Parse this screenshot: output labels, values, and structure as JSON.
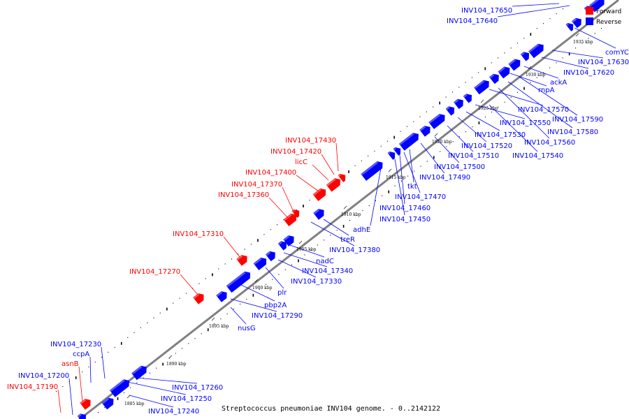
{
  "caption": "Streptococcus pneumoniae INV104 genome. - 0..2142122",
  "legend": [
    {
      "name": "Forward",
      "color": "#ff0000"
    },
    {
      "name": "Reverse",
      "color": "#0000ff"
    }
  ],
  "colors": {
    "forward": "#ff0000",
    "reverse": "#0000ff",
    "backbone": "#888888"
  },
  "ticks": [
    "1885 kbp",
    "1890 kbp",
    "1895 kbp",
    "1900 kbp",
    "1905 kbp",
    "1910 kbp",
    "1915 kbp",
    "1920 kbp",
    "1925 kbp",
    "1930 kbp",
    "1935 kbp"
  ],
  "forward_labels": [
    "INV104_17190",
    "asnB",
    "INV104_17270",
    "INV104_17310",
    "INV104_17360",
    "INV104_17370",
    "INV104_17400",
    "licC",
    "INV104_17420",
    "INV104_17430"
  ],
  "reverse_labels": [
    "INV104_17200",
    "ccpA",
    "INV104_17230",
    "INV104_17240",
    "INV104_17250",
    "INV104_17260",
    "nusG",
    "INV104_17290",
    "pbp2A",
    "plr",
    "INV104_17330",
    "INV104_17340",
    "nadC",
    "INV104_17380",
    "treR",
    "adhE",
    "INV104_17450",
    "INV104_17460",
    "INV104_17470",
    "tkt",
    "INV104_17490",
    "INV104_17500",
    "INV104_17510",
    "INV104_17520",
    "INV104_17530",
    "INV104_17540",
    "INV104_17550",
    "INV104_17560",
    "INV104_17570",
    "INV104_17580",
    "INV104_17590",
    "rnpA",
    "ackA",
    "INV104_17620",
    "INV104_17630",
    "comYC",
    "INV104_17640",
    "INV104_17650"
  ]
}
